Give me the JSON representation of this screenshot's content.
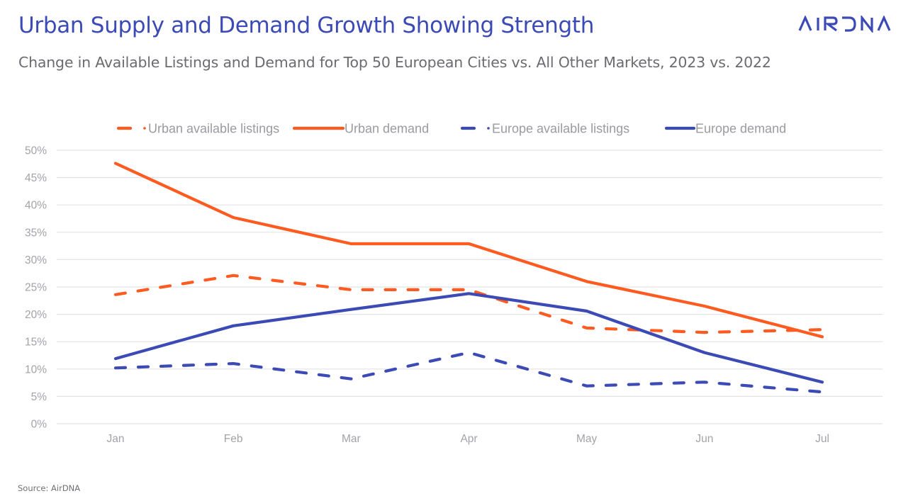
{
  "header": {
    "title": "Urban Supply and Demand Growth Showing Strength",
    "subtitle": "Change in Available Listings and Demand for Top 50 European Cities vs. All Other Markets, 2023 vs. 2022",
    "logo_text": "AIRDNA",
    "logo_color": "#3c4ab5"
  },
  "footer": {
    "source": "Source: AirDNA"
  },
  "chart_data": {
    "type": "line",
    "title": "Urban Supply and Demand Growth Showing Strength",
    "subtitle": "Change in Available Listings and Demand for Top 50 European Cities vs. All Other Markets, 2023 vs. 2022",
    "xlabel": "",
    "ylabel": "",
    "categories": [
      "Jan",
      "Feb",
      "Mar",
      "Apr",
      "May",
      "Jun",
      "Jul"
    ],
    "ylim": [
      0,
      50
    ],
    "yticks": [
      0,
      5,
      10,
      15,
      20,
      25,
      30,
      35,
      40,
      45,
      50
    ],
    "ytick_labels": [
      "0%",
      "5%",
      "10%",
      "15%",
      "20%",
      "25%",
      "30%",
      "35%",
      "40%",
      "45%",
      "50%"
    ],
    "y_unit": "%",
    "grid": "horizontal",
    "legend_position": "top",
    "series": [
      {
        "name": "Urban available listings",
        "style": "dashed",
        "color": "#ff5a1f",
        "values": [
          23.6,
          27.1,
          24.5,
          24.5,
          17.5,
          16.7,
          17.2
        ]
      },
      {
        "name": "Urban demand",
        "style": "solid",
        "color": "#ff5a1f",
        "values": [
          47.6,
          37.7,
          32.9,
          32.9,
          26.0,
          21.5,
          15.9
        ]
      },
      {
        "name": "Europe available listings",
        "style": "dashed",
        "color": "#3c4ab5",
        "values": [
          10.2,
          11.0,
          8.2,
          13.0,
          6.9,
          7.6,
          5.8
        ]
      },
      {
        "name": "Europe demand",
        "style": "solid",
        "color": "#3c4ab5",
        "values": [
          11.9,
          17.9,
          20.9,
          23.8,
          20.6,
          13.0,
          7.6
        ]
      }
    ]
  }
}
